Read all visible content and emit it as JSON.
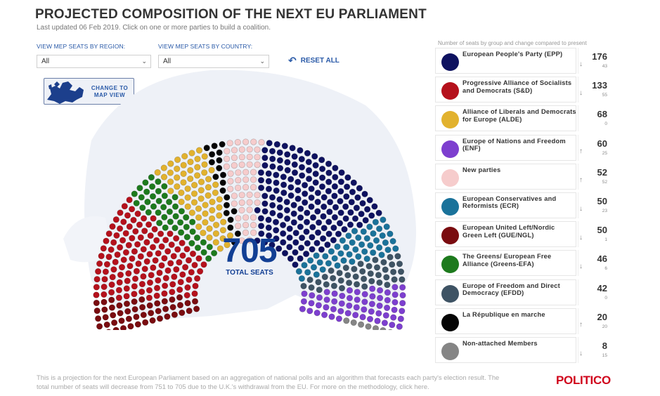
{
  "header": {
    "title": "PROJECTED COMPOSITION OF THE NEXT EU PARLIAMENT",
    "subtitle": "Last updated 06 Feb 2019. Click on one or more parties to build a coalition."
  },
  "filters": {
    "region_label": "VIEW MEP SEATS BY REGION:",
    "region_value": "All",
    "country_label": "VIEW MEP SEATS BY COUNTRY:",
    "country_value": "All",
    "reset_label": "RESET ALL",
    "map_button_label": "CHANGE TO MAP VIEW"
  },
  "center": {
    "total": "705",
    "label": "TOTAL SEATS"
  },
  "panel_caption": "Number of seats by group and change compared to present",
  "icons": {
    "reset": "undo-arrow-icon",
    "chevron": "chevron-down-icon",
    "map": "europe-map-icon",
    "down": "arrow-down-icon",
    "up": "arrow-up-icon"
  },
  "chart_data": {
    "type": "hemicycle",
    "total": 705,
    "groups": [
      {
        "name": "European People's Party (EPP)",
        "seats": 176,
        "change": "43",
        "direction": "down",
        "color": "#0e1260"
      },
      {
        "name": "Progressive Alliance of Socialists and Democrats (S&D)",
        "seats": 133,
        "change": "55",
        "direction": "down",
        "color": "#b5111c"
      },
      {
        "name": "Alliance of Liberals and Democrats for Europe (ALDE)",
        "seats": 68,
        "change": "0",
        "direction": "none",
        "color": "#e2b22e"
      },
      {
        "name": "Europe of Nations and Freedom (ENF)",
        "seats": 60,
        "change": "25",
        "direction": "up",
        "color": "#7d3fcf"
      },
      {
        "name": "New parties",
        "seats": 52,
        "change": "52",
        "direction": "up",
        "color": "#f6cccc"
      },
      {
        "name": "European Conservatives and Reformists (ECR)",
        "seats": 50,
        "change": "23",
        "direction": "down",
        "color": "#1a729a"
      },
      {
        "name": "European United Left/Nordic Green Left (GUE/NGL)",
        "seats": 50,
        "change": "1",
        "direction": "down",
        "color": "#7a0c10"
      },
      {
        "name": "The Greens/ European Free Alliance (Greens-EFA)",
        "seats": 46,
        "change": "6",
        "direction": "down",
        "color": "#1d7a1d"
      },
      {
        "name": "Europe of Freedom and Direct Democracy (EFDD)",
        "seats": 42,
        "change": "0",
        "direction": "none",
        "color": "#3e5364"
      },
      {
        "name": "La République en marche",
        "seats": 20,
        "change": "20",
        "direction": "up",
        "color": "#050505"
      },
      {
        "name": "Non-attached Members",
        "seats": 8,
        "change": "15",
        "direction": "down",
        "color": "#858585"
      }
    ],
    "hemicycle_order_left_to_right": [
      "European United Left/Nordic Green Left (GUE/NGL)",
      "Progressive Alliance of Socialists and Democrats (S&D)",
      "The Greens/ European Free Alliance (Greens-EFA)",
      "Alliance of Liberals and Democrats for Europe (ALDE)",
      "La République en marche",
      "New parties",
      "European People's Party (EPP)",
      "European Conservatives and Reformists (ECR)",
      "Europe of Freedom and Direct Democracy (EFDD)",
      "Europe of Nations and Freedom (ENF)",
      "Non-attached Members"
    ]
  },
  "footnote": "This is a projection for the next European Parliament based on an aggregation of national polls and an algorithm that forecasts each party's election result. The total number of seats will decrease from 751 to 705 due to the U.K.'s withdrawal from the EU. For more on the methodology, click here.",
  "brand": "POLITICO"
}
